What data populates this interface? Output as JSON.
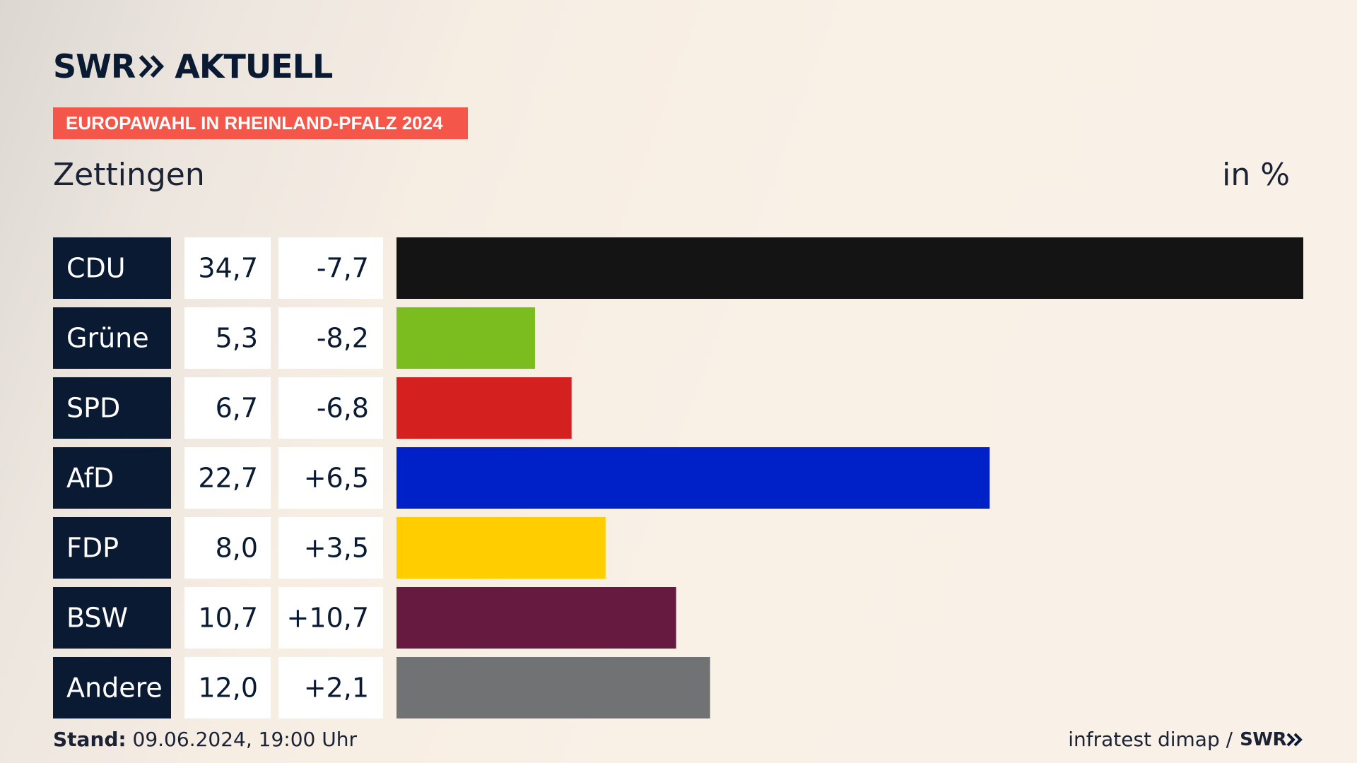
{
  "brand": {
    "logo_left": "SWR",
    "logo_right": "AKTUELL",
    "accent_color": "#f4574a",
    "navy_color": "#0b1a33"
  },
  "banner": "EUROPAWAHL IN RHEINLAND-PFALZ 2024",
  "region": "Zettingen",
  "unit": "in %",
  "footer": {
    "stand_label": "Stand:",
    "stand_value": "09.06.2024, 19:00 Uhr",
    "source": "infratest dimap /",
    "source_brand": "SWR"
  },
  "chart_data": {
    "type": "bar",
    "orientation": "horizontal",
    "categories": [
      "CDU",
      "Grüne",
      "SPD",
      "AfD",
      "FDP",
      "BSW",
      "Andere"
    ],
    "values": [
      34.7,
      5.3,
      6.7,
      22.7,
      8.0,
      10.7,
      12.0
    ],
    "value_labels": [
      "34,7",
      "5,3",
      "6,7",
      "22,7",
      "8,0",
      "10,7",
      "12,0"
    ],
    "change_labels": [
      "-7,7",
      "-8,2",
      "-6,8",
      "+6,5",
      "+3,5",
      "+10,7",
      "+2,1"
    ],
    "colors": [
      "#141414",
      "#7bbd1e",
      "#d52020",
      "#0020c8",
      "#ffcd00",
      "#661a3f",
      "#707274"
    ],
    "xlim": [
      0,
      34.7
    ],
    "grid": false
  }
}
